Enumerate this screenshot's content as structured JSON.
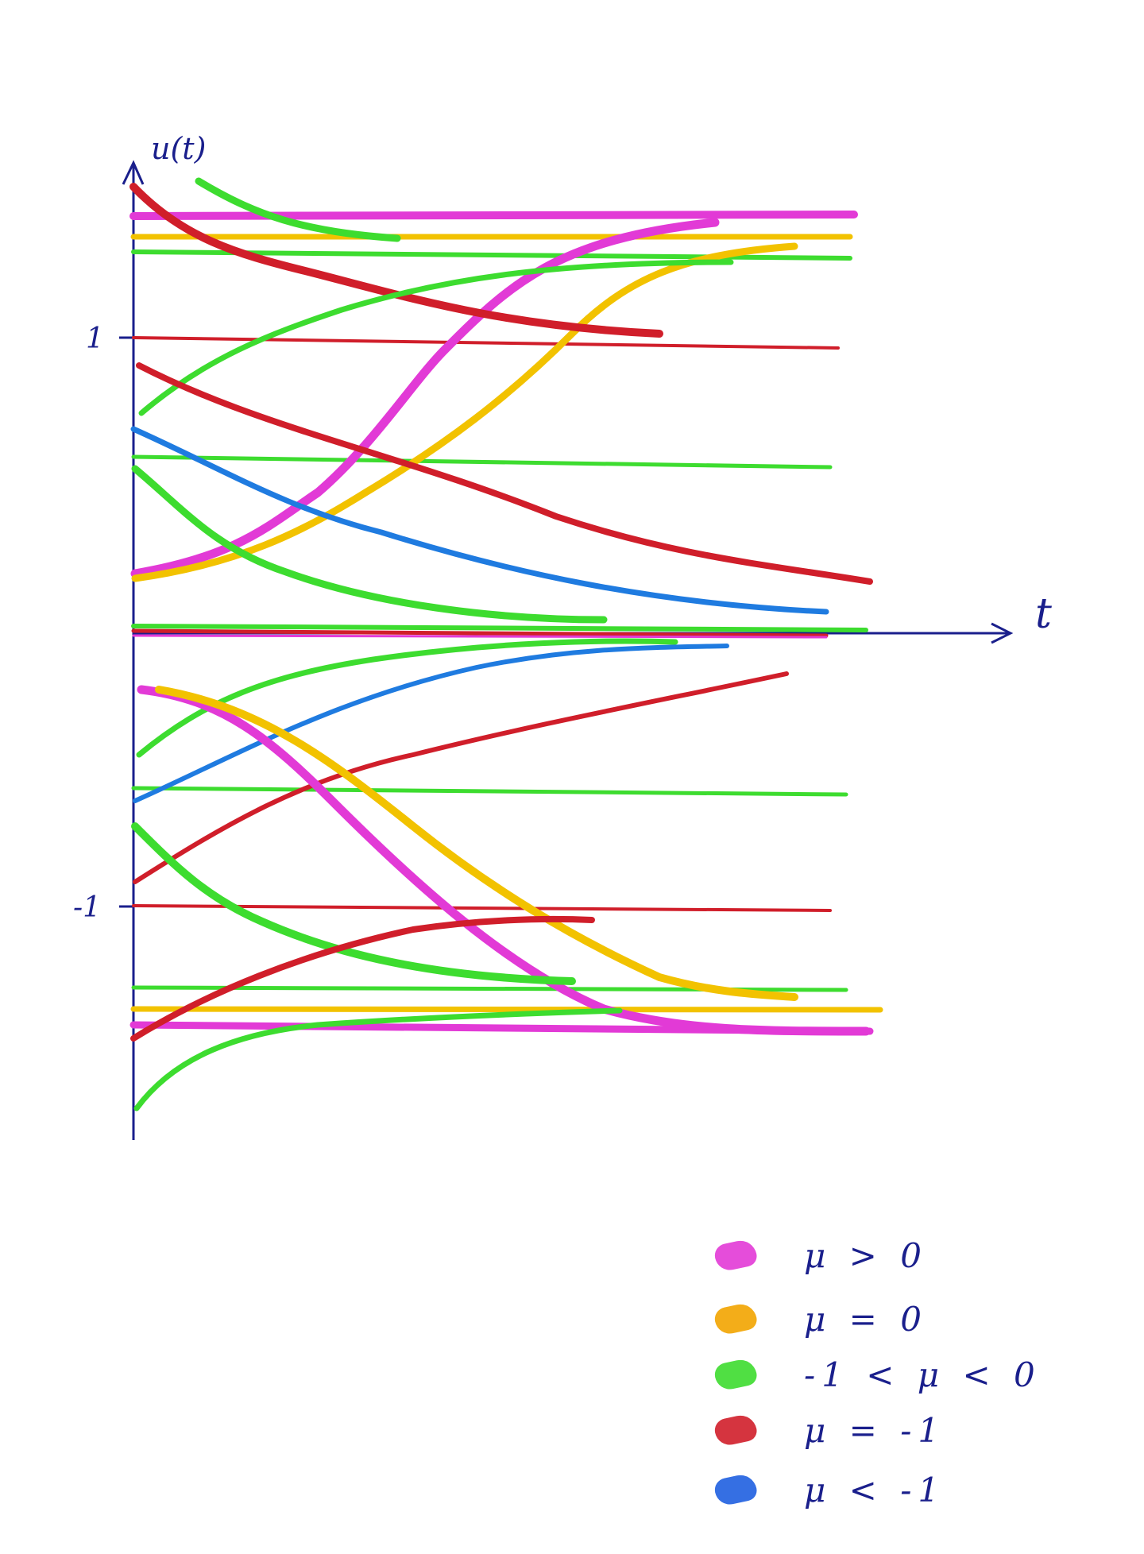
{
  "diagram": {
    "y_axis_label": "u(t)",
    "x_axis_label": "t",
    "ticks": {
      "upper": "1",
      "lower": "-1"
    }
  },
  "colors": {
    "mu_positive": "#e23ad6",
    "mu_zero": "#f2c200",
    "mu_between": "#3ddc2f",
    "mu_minus_one": "#d01e2a",
    "mu_less": "#1f7be0",
    "ink": "#1a1f8c"
  },
  "legend": [
    {
      "key": "mu_positive",
      "label": "μ > 0"
    },
    {
      "key": "mu_zero",
      "label": "μ = 0"
    },
    {
      "key": "mu_between",
      "label": "-1 < μ < 0"
    },
    {
      "key": "mu_minus_one",
      "label": "μ = -1"
    },
    {
      "key": "mu_less",
      "label": "μ < -1"
    }
  ]
}
